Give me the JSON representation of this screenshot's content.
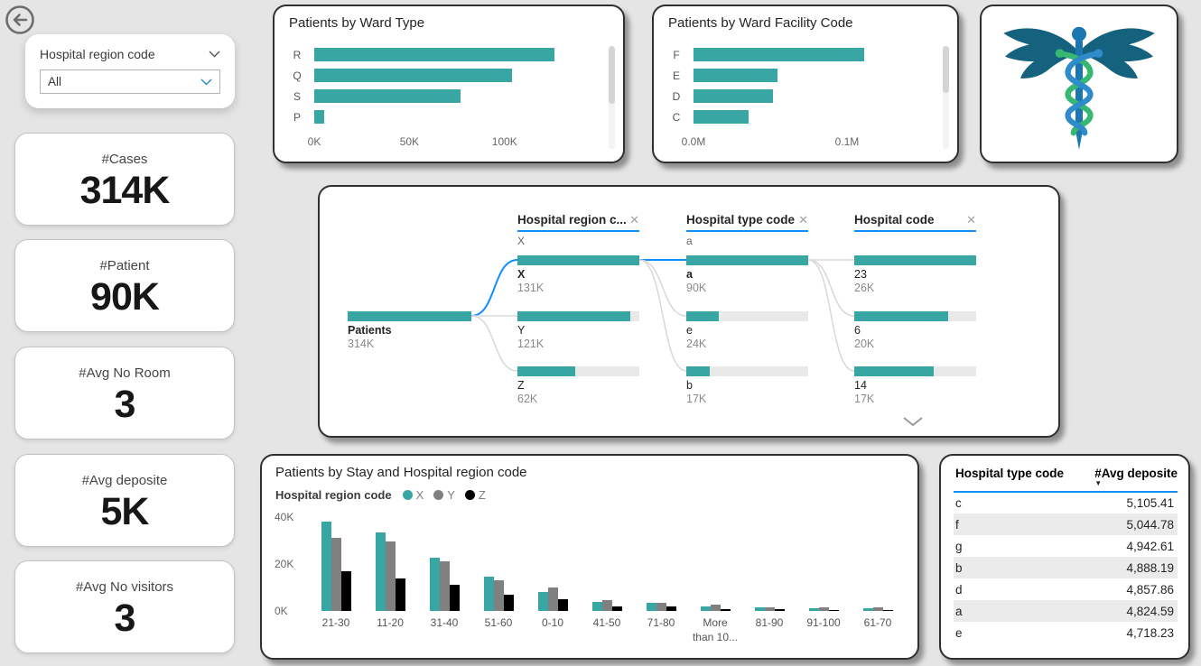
{
  "filter": {
    "label": "Hospital region code",
    "value": "All"
  },
  "kpis": [
    {
      "label": "#Cases",
      "value": "314K"
    },
    {
      "label": "#Patient",
      "value": "90K"
    },
    {
      "label": "#Avg No Room",
      "value": "3"
    },
    {
      "label": "#Avg deposite",
      "value": "5K"
    },
    {
      "label": "#Avg No visitors",
      "value": "3"
    }
  ],
  "colors": {
    "teal": "#38A6A3",
    "blue": "#118DFF",
    "gray": "#808080",
    "black": "#000000",
    "page_bg": "#E5E5E5"
  },
  "chart_data": [
    {
      "id": "ward_type",
      "type": "bar",
      "orientation": "horizontal",
      "title": "Patients by Ward Type",
      "categories": [
        "R",
        "Q",
        "S",
        "P"
      ],
      "values": [
        126,
        104,
        77,
        5
      ],
      "unit": "K",
      "xmax": 148,
      "xticks": [
        {
          "label": "0K",
          "v": 0
        },
        {
          "label": "50K",
          "v": 50
        },
        {
          "label": "100K",
          "v": 100
        }
      ],
      "color": "#38A6A3"
    },
    {
      "id": "ward_facility",
      "type": "bar",
      "orientation": "horizontal",
      "title": "Patients by Ward Facility Code",
      "categories": [
        "F",
        "E",
        "D",
        "C"
      ],
      "values": [
        0.111,
        0.055,
        0.052,
        0.036
      ],
      "unit": "M",
      "xmax": 0.153,
      "xticks": [
        {
          "label": "0.0M",
          "v": 0
        },
        {
          "label": "0.1M",
          "v": 0.1
        }
      ],
      "color": "#38A6A3"
    },
    {
      "id": "decomp_tree",
      "type": "tree",
      "root": {
        "label": "Patients",
        "display": "314K",
        "value": 314
      },
      "columns": [
        {
          "header": "Hospital region c...",
          "sub": "X",
          "nodes": [
            {
              "label": "X",
              "display": "131K",
              "value": 131,
              "selected": true
            },
            {
              "label": "Y",
              "display": "121K",
              "value": 121,
              "selected": false
            },
            {
              "label": "Z",
              "display": "62K",
              "value": 62,
              "selected": false
            }
          ]
        },
        {
          "header": "Hospital type code",
          "sub": "a",
          "nodes": [
            {
              "label": "a",
              "display": "90K",
              "value": 90,
              "selected": true
            },
            {
              "label": "e",
              "display": "24K",
              "value": 24,
              "selected": false
            },
            {
              "label": "b",
              "display": "17K",
              "value": 17,
              "selected": false
            }
          ]
        },
        {
          "header": "Hospital code",
          "sub": "",
          "nodes": [
            {
              "label": "23",
              "display": "26K",
              "value": 26,
              "selected": false
            },
            {
              "label": "6",
              "display": "20K",
              "value": 20,
              "selected": false
            },
            {
              "label": "14",
              "display": "17K",
              "value": 17,
              "selected": false
            }
          ]
        }
      ]
    },
    {
      "id": "stay",
      "type": "bar",
      "orientation": "vertical-grouped",
      "title": "Patients by Stay and Hospital region code",
      "legend_title": "Hospital region code",
      "categories": [
        "21-30",
        "11-20",
        "31-40",
        "51-60",
        "0-10",
        "41-50",
        "71-80",
        "More\nthan 10...",
        "81-90",
        "91-100",
        "61-70"
      ],
      "series": [
        {
          "name": "X",
          "color": "#38A6A3",
          "values": [
            38,
            33.5,
            22.5,
            14.5,
            8,
            4,
            3.5,
            2,
            1.5,
            1.2,
            1.2
          ]
        },
        {
          "name": "Y",
          "color": "#808080",
          "values": [
            31,
            29.5,
            21,
            13,
            10,
            4.5,
            3.5,
            2.6,
            1.7,
            1.4,
            1.4
          ]
        },
        {
          "name": "Z",
          "color": "#000000",
          "values": [
            17,
            14,
            11,
            7,
            5,
            2,
            1.8,
            0.9,
            0.6,
            0.4,
            0.5
          ]
        }
      ],
      "unit": "K",
      "ymax": 43,
      "yticks": [
        {
          "label": "0K",
          "v": 0
        },
        {
          "label": "20K",
          "v": 20
        },
        {
          "label": "40K",
          "v": 40
        }
      ]
    },
    {
      "id": "deposit_table",
      "type": "table",
      "columns": [
        "Hospital type code",
        "#Avg deposite"
      ],
      "sort": {
        "column": "#Avg deposite",
        "direction": "desc"
      },
      "rows": [
        [
          "c",
          "5,105.41"
        ],
        [
          "f",
          "5,044.78"
        ],
        [
          "g",
          "4,942.61"
        ],
        [
          "b",
          "4,888.19"
        ],
        [
          "d",
          "4,857.86"
        ],
        [
          "a",
          "4,824.59"
        ],
        [
          "e",
          "4,718.23"
        ]
      ]
    }
  ]
}
